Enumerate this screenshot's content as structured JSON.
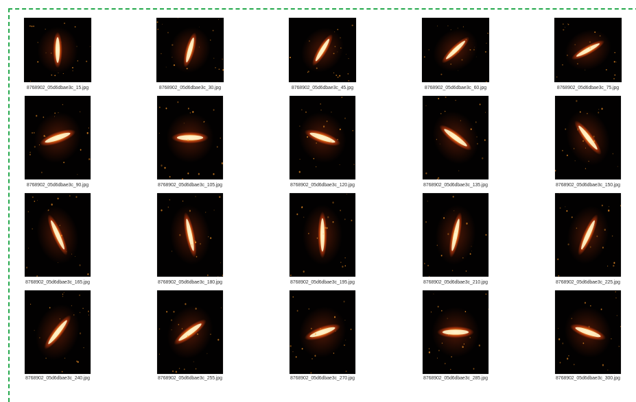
{
  "window": {
    "title": ""
  },
  "colors": {
    "frame_border": "#23a84b",
    "background": "#ffffff",
    "thumbnail_bg": "#020101",
    "glow_core": "#fff4cc",
    "glow_mid": "#ff9a2a",
    "glow_outer": "#d6400f"
  },
  "files": [
    {
      "name": "8768902_05d6dbae3c_15.jpg",
      "angle": 15,
      "icon": "thumbnail-image"
    },
    {
      "name": "8768902_05d6dbae3c_30.jpg",
      "angle": 30,
      "icon": "thumbnail-image"
    },
    {
      "name": "8768902_05d6dbae3c_45.jpg",
      "angle": 45,
      "icon": "thumbnail-image"
    },
    {
      "name": "8768902_05d6dbae3c_60.jpg",
      "angle": 60,
      "icon": "thumbnail-image"
    },
    {
      "name": "8768902_05d6dbae3c_75.jpg",
      "angle": 75,
      "icon": "thumbnail-image"
    },
    {
      "name": "8768902_05d6dbae3c_90.jpg",
      "angle": 90,
      "icon": "thumbnail-image"
    },
    {
      "name": "8768902_05d6dbae3c_105.jpg",
      "angle": 105,
      "icon": "thumbnail-image"
    },
    {
      "name": "8768902_05d6dbae3c_120.jpg",
      "angle": 120,
      "icon": "thumbnail-image"
    },
    {
      "name": "8768902_05d6dbae3c_135.jpg",
      "angle": 135,
      "icon": "thumbnail-image"
    },
    {
      "name": "8768902_05d6dbae3c_150.jpg",
      "angle": 150,
      "icon": "thumbnail-image"
    },
    {
      "name": "8768902_05d6dbae3c_165.jpg",
      "angle": 165,
      "icon": "thumbnail-image"
    },
    {
      "name": "8768902_05d6dbae3c_180.jpg",
      "angle": 180,
      "icon": "thumbnail-image"
    },
    {
      "name": "8768902_05d6dbae3c_195.jpg",
      "angle": 195,
      "icon": "thumbnail-image"
    },
    {
      "name": "8768902_05d6dbae3c_210.jpg",
      "angle": 210,
      "icon": "thumbnail-image"
    },
    {
      "name": "8768902_05d6dbae3c_225.jpg",
      "angle": 225,
      "icon": "thumbnail-image"
    },
    {
      "name": "8768902_05d6dbae3c_240.jpg",
      "angle": 240,
      "icon": "thumbnail-image"
    },
    {
      "name": "8768902_05d6dbae3c_255.jpg",
      "angle": 255,
      "icon": "thumbnail-image"
    },
    {
      "name": "8768902_05d6dbae3c_270.jpg",
      "angle": 270,
      "icon": "thumbnail-image"
    },
    {
      "name": "8768902_05d6dbae3c_285.jpg",
      "angle": 285,
      "icon": "thumbnail-image"
    },
    {
      "name": "8768902_05d6dbae3c_300.jpg",
      "angle": 300,
      "icon": "thumbnail-image"
    }
  ]
}
